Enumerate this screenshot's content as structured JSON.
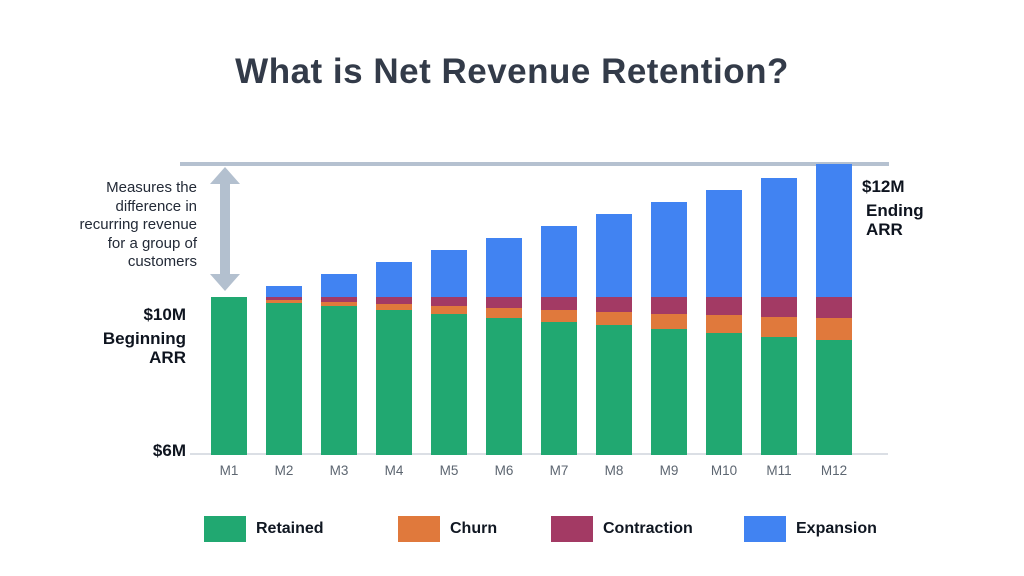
{
  "header": {
    "title": "What is Net Revenue Retention?"
  },
  "annotation": {
    "text": "Measures the\ndifference in\nrecurring revenue\nfor a group of\ncustomers"
  },
  "labels": {
    "beginning_value": "$10M",
    "beginning_name": "Beginning\nARR",
    "baseline_value": "$6M",
    "ending_value": "$12M",
    "ending_name": "Ending\nARR"
  },
  "legend": {
    "items": [
      {
        "label": "Retained",
        "color": "#21A871"
      },
      {
        "label": "Churn",
        "color": "#E0793C"
      },
      {
        "label": "Contraction",
        "color": "#A33A64"
      },
      {
        "label": "Expansion",
        "color": "#4183F2"
      }
    ]
  },
  "colors": {
    "title": "#333B49",
    "ending_line": "#B5C1D0",
    "arrow": "#B3C0CF",
    "axis_line": "#DBDFE5",
    "month_label": "#5D6671"
  },
  "chart_data": {
    "type": "bar",
    "stacked": true,
    "title": "What is Net Revenue Retention?",
    "categories": [
      "M1",
      "M2",
      "M3",
      "M4",
      "M5",
      "M6",
      "M7",
      "M8",
      "M9",
      "M10",
      "M11",
      "M12"
    ],
    "series": [
      {
        "name": "Retained",
        "color": "#21A871",
        "values": [
          10.0,
          9.84,
          9.76,
          9.68,
          9.58,
          9.46,
          9.37,
          9.28,
          9.19,
          9.1,
          9.0,
          8.91
        ]
      },
      {
        "name": "Churn",
        "color": "#E0793C",
        "values": [
          0.0,
          0.08,
          0.11,
          0.14,
          0.19,
          0.26,
          0.3,
          0.33,
          0.38,
          0.44,
          0.5,
          0.56
        ]
      },
      {
        "name": "Contraction",
        "color": "#A33A64",
        "values": [
          0.0,
          0.08,
          0.13,
          0.18,
          0.23,
          0.28,
          0.33,
          0.39,
          0.43,
          0.46,
          0.5,
          0.53
        ]
      },
      {
        "name": "Expansion",
        "color": "#4183F2",
        "values": [
          0.0,
          0.17,
          0.35,
          0.52,
          0.7,
          0.88,
          1.07,
          1.25,
          1.43,
          1.61,
          1.79,
          2.0
        ]
      }
    ],
    "axis": {
      "y_units": "$M",
      "y_min_label": "$6M",
      "beginning_arr_label": "$10M Beginning ARR",
      "ending_arr_label": "$12M Ending ARR",
      "y_min": 6,
      "beginning_arr": 10,
      "ending_arr": 12
    },
    "annotations": [
      "Measures the difference in recurring revenue for a group of customers"
    ],
    "legend_position": "bottom",
    "grid": false
  }
}
